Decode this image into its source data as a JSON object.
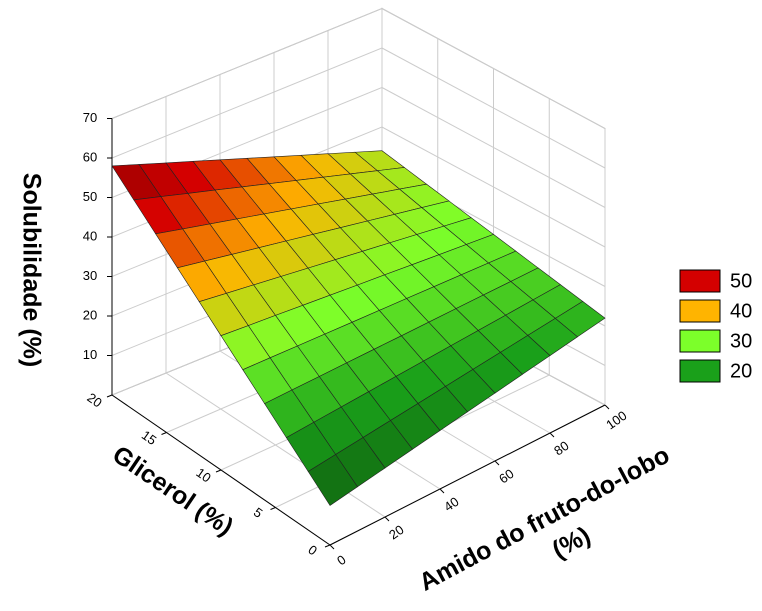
{
  "chart_data": {
    "type": "surface3d",
    "x_label": [
      "Amido do fruto-do-lobo",
      "(%)"
    ],
    "y_label": "Glicerol (%)",
    "z_label": "Solubilidade (%)",
    "x": [
      0,
      10,
      20,
      30,
      40,
      50,
      60,
      70,
      80,
      90,
      100
    ],
    "y": [
      0,
      2,
      4,
      6,
      8,
      10,
      12,
      14,
      16,
      18,
      20
    ],
    "z": [
      [
        10,
        11.2,
        12.4,
        13.6,
        14.8,
        16,
        17.2,
        18.4,
        19.6,
        20.8,
        22
      ],
      [
        14.8,
        15.64,
        16.48,
        17.32,
        18.16,
        19,
        19.84,
        20.68,
        21.52,
        22.36,
        23.2
      ],
      [
        19.6,
        20.08,
        20.56,
        21.04,
        21.52,
        22,
        22.48,
        22.96,
        23.44,
        23.92,
        24.4
      ],
      [
        24.4,
        24.52,
        24.64,
        24.76,
        24.88,
        25,
        25.12,
        25.24,
        25.36,
        25.48,
        25.6
      ],
      [
        29.2,
        28.96,
        28.72,
        28.48,
        28.24,
        28,
        27.76,
        27.52,
        27.28,
        27.04,
        26.8
      ],
      [
        34,
        33.4,
        32.8,
        32.2,
        31.6,
        31,
        30.4,
        29.8,
        29.2,
        28.6,
        28
      ],
      [
        38.8,
        37.84,
        36.88,
        35.92,
        34.96,
        34,
        33.04,
        32.08,
        31.12,
        30.16,
        29.2
      ],
      [
        43.6,
        42.28,
        40.96,
        39.64,
        38.32,
        37,
        35.68,
        34.36,
        33.04,
        31.72,
        30.4
      ],
      [
        48.4,
        46.72,
        45.04,
        43.36,
        41.68,
        40,
        38.32,
        36.64,
        34.96,
        33.28,
        31.6
      ],
      [
        53.2,
        51.16,
        49.12,
        47.08,
        45.04,
        43,
        40.96,
        38.92,
        36.88,
        34.84,
        32.8
      ],
      [
        58,
        55.6,
        53.2,
        50.8,
        48.4,
        46,
        43.6,
        41.2,
        38.8,
        36.4,
        34
      ]
    ],
    "xlim": [
      0,
      100
    ],
    "xticks": [
      0,
      20,
      40,
      60,
      80,
      100
    ],
    "ylim": [
      0,
      20
    ],
    "yticks": [
      0,
      5,
      10,
      15,
      20
    ],
    "zlim": [
      0,
      70
    ],
    "zticks": [
      10,
      20,
      30,
      40,
      50,
      60,
      70
    ],
    "grid": true,
    "legend_position": "right",
    "legend": [
      {
        "label": 50,
        "color": "#d40000"
      },
      {
        "label": 40,
        "color": "#ffb400"
      },
      {
        "label": 30,
        "color": "#7cff2a"
      },
      {
        "label": 20,
        "color": "#1aa01a"
      }
    ]
  }
}
